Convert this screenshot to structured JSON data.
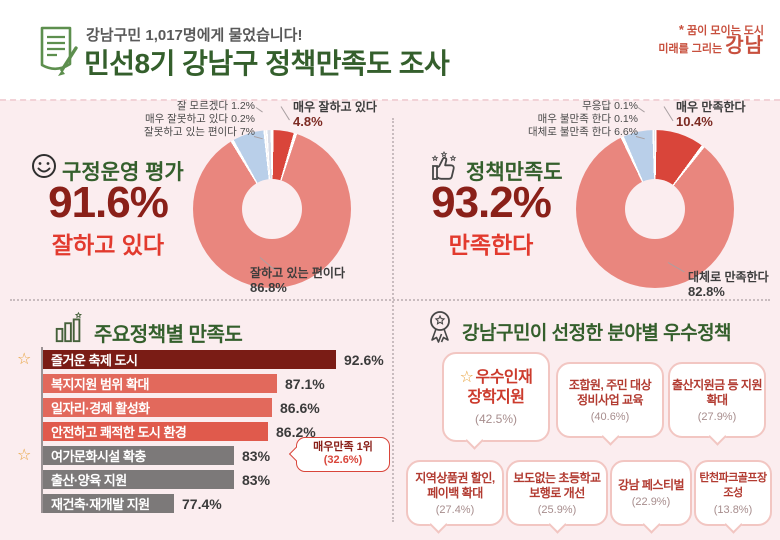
{
  "header": {
    "subtitle": "강남구민 1,017명에게 물었습니다!",
    "title": "민선8기 강남구 정책만족도 조사",
    "logo": {
      "mark": "*",
      "line1": "꿈이 모이는 도시",
      "line2_prefix": "미래를 그리는",
      "brand": "강남"
    }
  },
  "icons": {
    "star": "☆"
  },
  "colors": {
    "background_pink": "#fbedef",
    "accent_red": "#d9453a",
    "salmon": "#e9867e",
    "light_blue": "#b9cfe9",
    "dark_green": "#345f2c",
    "maroon_value": "#8a2019",
    "bright_red_text": "#e23a2e",
    "dark_bar": "#7a1c15",
    "gray_bar": "#7c7979",
    "star_orange": "#e8a23c"
  },
  "chart_data": [
    {
      "type": "donut",
      "title": "구정운영 평가",
      "headline_value": "91.6%",
      "headline_label": "잘하고 있다",
      "segments": [
        {
          "label": "매우 잘하고 있다",
          "value": 4.8,
          "display": "4.8%",
          "color": "#d9453a"
        },
        {
          "label": "잘하고 있는 편이다",
          "value": 86.8,
          "display": "86.8%",
          "color": "#e9867e"
        },
        {
          "label": "잘못하고 있는 편이다",
          "value": 7,
          "display": "7%",
          "color": "#b9cfe9"
        },
        {
          "label": "매우 잘못하고 있다",
          "value": 0.2,
          "display": "0.2%",
          "color": "#f3e9ea"
        },
        {
          "label": "잘 모르겠다",
          "value": 1.2,
          "display": "1.2%",
          "color": "#d9dde8"
        }
      ]
    },
    {
      "type": "donut",
      "title": "정책만족도",
      "headline_value": "93.2%",
      "headline_label": "만족한다",
      "segments": [
        {
          "label": "매우 만족한다",
          "value": 10.4,
          "display": "10.4%",
          "color": "#d9453a"
        },
        {
          "label": "대체로 만족한다",
          "value": 82.8,
          "display": "82.8%",
          "color": "#e9867e"
        },
        {
          "label": "대체로 불만족 한다",
          "value": 6.6,
          "display": "6.6%",
          "color": "#b9cfe9"
        },
        {
          "label": "매우 불만족 한다",
          "value": 0.1,
          "display": "0.1%",
          "color": "#f3e9ea"
        },
        {
          "label": "무응답",
          "value": 0.1,
          "display": "0.1%",
          "color": "#d9dde8"
        }
      ]
    },
    {
      "type": "bar",
      "title": "주요정책별 만족도",
      "orientation": "horizontal",
      "rows": [
        {
          "label": "즐거운 축제 도시",
          "value": 92.6,
          "display": "92.6%",
          "color": "#7a1c15",
          "starred": true
        },
        {
          "label": "복지지원 범위 확대",
          "value": 87.1,
          "display": "87.1%",
          "color": "#e2695c",
          "starred": false
        },
        {
          "label": "일자리·경제 활성화",
          "value": 86.6,
          "display": "86.6%",
          "color": "#e2695c",
          "starred": false
        },
        {
          "label": "안전하고 쾌적한 도시 환경",
          "value": 86.2,
          "display": "86.2%",
          "color": "#e05a4c",
          "starred": false
        },
        {
          "label": "여가문화시설 확충",
          "value": 83,
          "display": "83%",
          "color": "#7c7979",
          "starred": true
        },
        {
          "label": "출산·양육 지원",
          "value": 83,
          "display": "83%",
          "color": "#7c7979",
          "starred": false
        },
        {
          "label": "재건축·재개발 지원",
          "value": 77.4,
          "display": "77.4%",
          "color": "#7c7979",
          "starred": false
        }
      ],
      "annotation": {
        "line1": "매우만족 1위",
        "line2": "(32.6%)",
        "attached_to": "여가문화시설 확충"
      }
    }
  ],
  "best_policies": {
    "title": "강남구민이 선정한 분야별 우수정책",
    "cards": [
      {
        "name": "우수인재 장학지원",
        "pct": "(42.5%)",
        "starred": true
      },
      {
        "name": "조합원, 주민 대상 정비사업 교육",
        "pct": "(40.6%)",
        "starred": false
      },
      {
        "name": "출산지원금 등 지원 확대",
        "pct": "(27.9%)",
        "starred": false
      },
      {
        "name": "지역상품권 할인, 페이백 확대",
        "pct": "(27.4%)",
        "starred": false
      },
      {
        "name": "보도없는 초등학교 보행로 개선",
        "pct": "(25.9%)",
        "starred": false
      },
      {
        "name": "강남 페스티벌",
        "pct": "(22.9%)",
        "starred": false
      },
      {
        "name": "탄천파크골프장 조성",
        "pct": "(13.8%)",
        "starred": false
      }
    ]
  }
}
